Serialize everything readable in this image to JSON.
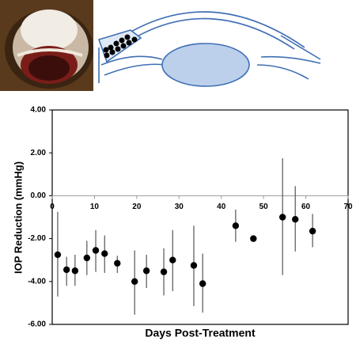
{
  "chart_data": {
    "type": "scatter",
    "xlabel": "Days Post-Treatment",
    "ylabel": "IOP Reduction (mmHg)",
    "x": [
      1.3,
      3.4,
      5.4,
      8.2,
      10.3,
      12.4,
      15.4,
      19.5,
      22.3,
      26.4,
      28.5,
      33.5,
      35.6,
      43.4,
      47.6,
      54.5,
      57.5,
      61.6
    ],
    "values": [
      -2.75,
      -3.45,
      -3.5,
      -2.9,
      -2.55,
      -2.7,
      -3.15,
      -4.0,
      -3.5,
      -3.55,
      -3.0,
      -3.25,
      -4.1,
      -1.4,
      -2.0,
      -1.0,
      -1.1,
      -1.65
    ],
    "upper": [
      -0.75,
      -2.85,
      -2.75,
      -2.1,
      -1.6,
      -1.85,
      -2.8,
      -2.55,
      -2.75,
      -2.45,
      -1.6,
      -1.4,
      -2.7,
      -0.65,
      -1.85,
      1.75,
      0.45,
      -0.85
    ],
    "lower": [
      -4.7,
      -4.2,
      -4.2,
      -3.7,
      -3.55,
      -3.6,
      -3.6,
      -5.55,
      -4.3,
      -4.65,
      -4.45,
      -5.15,
      -5.45,
      -2.15,
      -2.15,
      -3.7,
      -2.6,
      -2.4
    ],
    "color": "#000000",
    "xlim": [
      0,
      70
    ],
    "xticks": [
      0,
      10,
      20,
      30,
      40,
      50,
      60,
      70
    ],
    "ylim": [
      -6,
      4
    ],
    "yticks": [
      {
        "value": 4,
        "label": "4.00"
      },
      {
        "value": 2,
        "label": "2.00"
      },
      {
        "value": 0,
        "label": "0.00"
      },
      {
        "value": -2,
        "label": "-2.00"
      },
      {
        "value": -4,
        "label": "-4.00"
      },
      {
        "value": -6,
        "label": "-6.00"
      }
    ]
  }
}
